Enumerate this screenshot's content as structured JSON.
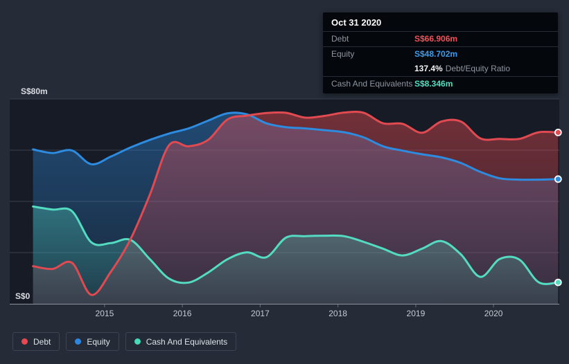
{
  "tooltip": {
    "date": "Oct 31 2020",
    "debt": {
      "label": "Debt",
      "value": "S$66.906m"
    },
    "equity": {
      "label": "Equity",
      "value": "S$48.702m"
    },
    "ratio": {
      "value": "137.4%",
      "label": "Debt/Equity Ratio"
    },
    "cash": {
      "label": "Cash And Equivalents",
      "value": "S$8.346m"
    }
  },
  "legend": {
    "items": [
      {
        "label": "Debt",
        "color": "#e8484f"
      },
      {
        "label": "Equity",
        "color": "#2c87e0"
      },
      {
        "label": "Cash And Equivalents",
        "color": "#45d9b8"
      }
    ]
  },
  "colors": {
    "page_background": "#252b37",
    "plot_background": "#171b25",
    "gridline": "#39404e",
    "baseline": "#8e939c",
    "axis_text": "#c6cbd3",
    "tooltip_background": "#04070b"
  },
  "chart_data": {
    "type": "area",
    "title": "",
    "xlabel": "",
    "ylabel": "",
    "legend_position": "bottom-left",
    "grid": true,
    "x_unit": "decimal_year",
    "xlim": [
      2013.78,
      2020.86
    ],
    "y_axis": {
      "min": 0,
      "max": 80,
      "gridlines": [
        80,
        60,
        40,
        20,
        0
      ],
      "tick_labels": [
        {
          "value": 80,
          "label": "S$80m"
        },
        {
          "value": 0,
          "label": "S$0"
        }
      ]
    },
    "x_ticks": [
      {
        "value": 2015,
        "label": "2015"
      },
      {
        "value": 2016,
        "label": "2016"
      },
      {
        "value": 2017,
        "label": "2017"
      },
      {
        "value": 2018,
        "label": "2018"
      },
      {
        "value": 2019,
        "label": "2019"
      },
      {
        "value": 2020,
        "label": "2020"
      }
    ],
    "x": [
      2014.08,
      2014.33,
      2014.58,
      2014.83,
      2015.08,
      2015.33,
      2015.58,
      2015.83,
      2016.08,
      2016.33,
      2016.58,
      2016.83,
      2017.08,
      2017.33,
      2017.58,
      2017.83,
      2018.08,
      2018.33,
      2018.58,
      2018.83,
      2019.08,
      2019.33,
      2019.58,
      2019.83,
      2020.08,
      2020.33,
      2020.58,
      2020.83
    ],
    "series": [
      {
        "name": "Debt",
        "key": "debt",
        "color": "#e24a51",
        "fill_opacity": [
          0.45,
          0.14
        ],
        "values": [
          14.7,
          13.6,
          16.0,
          3.5,
          12.5,
          25.0,
          42.5,
          62.0,
          61.5,
          64.0,
          72.0,
          73.5,
          74.5,
          74.6,
          72.7,
          73.4,
          74.7,
          74.6,
          70.5,
          70.3,
          66.8,
          71.2,
          71.2,
          64.6,
          64.4,
          64.4,
          67.0,
          66.906
        ]
      },
      {
        "name": "Equity",
        "key": "equity",
        "color": "#2d8be0",
        "fill_opacity": [
          0.42,
          0.12
        ],
        "values": [
          60.3,
          58.9,
          59.9,
          54.5,
          57.5,
          61.0,
          64.0,
          66.5,
          68.5,
          71.5,
          74.4,
          74.0,
          70.5,
          69.0,
          68.5,
          67.8,
          67.0,
          65.0,
          61.5,
          59.8,
          58.4,
          57.2,
          55.0,
          51.5,
          49.0,
          48.5,
          48.5,
          48.702
        ]
      },
      {
        "name": "Cash And Equivalents",
        "key": "cash",
        "color": "#53dcc1",
        "fill_opacity": [
          0.34,
          0.1
        ],
        "values": [
          38.0,
          36.8,
          36.2,
          24.0,
          23.7,
          25.0,
          17.5,
          9.8,
          8.3,
          12.2,
          17.4,
          20.1,
          18.2,
          25.8,
          26.4,
          26.6,
          26.4,
          24.2,
          21.5,
          18.9,
          21.5,
          24.5,
          19.3,
          10.5,
          17.5,
          17.3,
          8.4,
          8.346
        ]
      }
    ]
  }
}
